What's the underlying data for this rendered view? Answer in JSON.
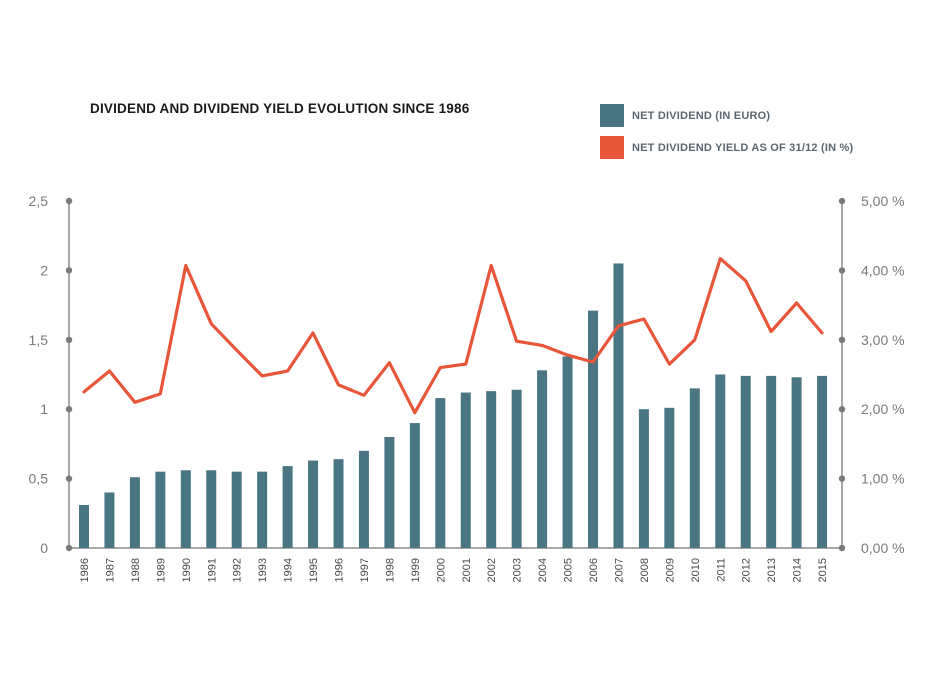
{
  "chart_data": {
    "type": "bar+line",
    "title": "DIVIDEND AND DIVIDEND YIELD EVOLUTION SINCE 1986",
    "categories": [
      "1986",
      "1987",
      "1988",
      "1989",
      "1990",
      "1991",
      "1992",
      "1993",
      "1994",
      "1995",
      "1996",
      "1997",
      "1998",
      "1999",
      "2000",
      "2001",
      "2002",
      "2003",
      "2004",
      "2005",
      "2006",
      "2007",
      "2008",
      "2009",
      "2010",
      "2011",
      "2012",
      "2013",
      "2014",
      "2015"
    ],
    "series": [
      {
        "name": "NET DIVIDEND (IN EURO)",
        "type": "bar",
        "axis": "left",
        "color": "#4a7582",
        "values": [
          0.31,
          0.4,
          0.51,
          0.55,
          0.56,
          0.56,
          0.55,
          0.55,
          0.59,
          0.63,
          0.64,
          0.7,
          0.8,
          0.9,
          1.08,
          1.12,
          1.13,
          1.14,
          1.28,
          1.38,
          1.71,
          2.05,
          1.0,
          1.01,
          1.15,
          1.25,
          1.24,
          1.24,
          1.23,
          1.24
        ]
      },
      {
        "name": "NET DIVIDEND YIELD AS OF 31/12 (IN %)",
        "type": "line",
        "axis": "right",
        "color": "#e8563a",
        "values": [
          2.25,
          2.55,
          2.1,
          2.22,
          4.07,
          3.23,
          2.85,
          2.48,
          2.55,
          3.1,
          2.35,
          2.2,
          2.67,
          1.95,
          2.6,
          2.65,
          4.07,
          2.98,
          2.92,
          2.78,
          2.68,
          3.2,
          3.3,
          2.65,
          3.0,
          4.17,
          3.85,
          3.12,
          3.53,
          3.1
        ]
      }
    ],
    "y_left": {
      "range": [
        0,
        2.5
      ],
      "ticks": [
        "0",
        "0,5",
        "1",
        "1,5",
        "2",
        "2,5"
      ]
    },
    "y_right": {
      "range": [
        0,
        5
      ],
      "ticks": [
        "0,00 %",
        "1,00 %",
        "2,00 %",
        "3,00 %",
        "4,00 %",
        "5,00 %"
      ]
    },
    "legend_placement": "top-right",
    "grid": false
  }
}
